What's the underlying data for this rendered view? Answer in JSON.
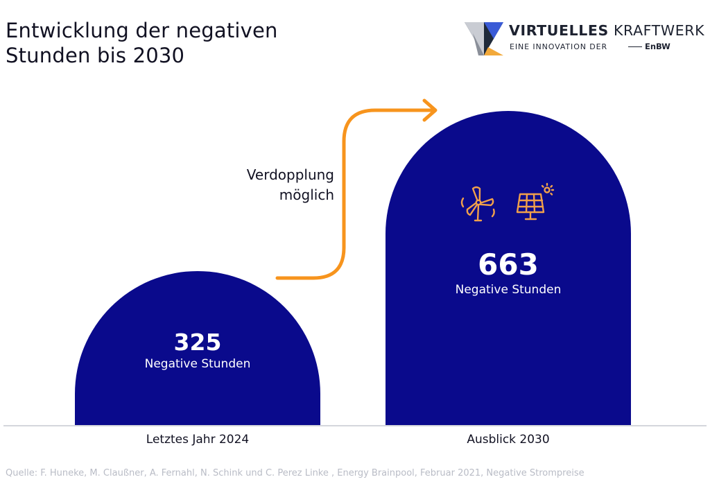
{
  "title_lines": [
    "Entwicklung der negativen",
    "Stunden bis 2030"
  ],
  "logo": {
    "line1_bold": "VIRTUELLES",
    "line1_light": " KRAFTWERK",
    "line2": "EINE INNOVATION DER",
    "brand": "EnBW"
  },
  "annotation_lines": [
    "Verdopplung",
    "möglich"
  ],
  "source": "Quelle: F. Huneke, M. Claußner, A. Fernahl, N. Schink und C. Perez Linke , Energy Brainpool, Februar 2021, Negative Strompreise",
  "colors": {
    "bar": "#0a0a8c",
    "arrow": "#f7941d",
    "icon": "#f0a04b",
    "baseline": "#d4d6dc"
  },
  "icons": [
    "wind-turbine-icon",
    "solar-panel-icon"
  ],
  "chart_data": {
    "type": "bar",
    "categories": [
      "Letztes Jahr 2024",
      "Ausblick 2030"
    ],
    "values": [
      325,
      663
    ],
    "value_labels": [
      "325",
      "663"
    ],
    "unit_label": "Negative Stunden",
    "ylim": [
      0,
      663
    ],
    "grid": false,
    "legend": "none"
  }
}
